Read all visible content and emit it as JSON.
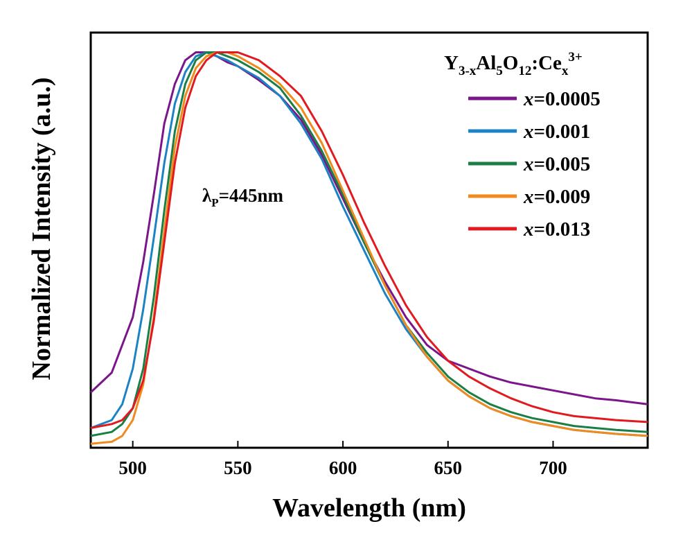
{
  "chart_data": {
    "type": "line",
    "xlabel": "Wavelength (nm)",
    "ylabel": "Normalized Intensity (a.u.)",
    "xlim": [
      480,
      745
    ],
    "ylim": [
      0,
      1.05
    ],
    "x_ticks": [
      "500",
      "550",
      "600",
      "650",
      "700"
    ],
    "y_ticks_labeled": false,
    "grid": false,
    "legend_position": "top-right",
    "legend": {
      "title_parts": {
        "y": "Y",
        "y_sub": "3-x",
        "al": "Al",
        "al_sub": "5",
        "o": "O",
        "o_sub": "12",
        "ce": ":Ce",
        "ce_sub": "x",
        "ce_sup": "3+"
      }
    },
    "annotation": {
      "text_lambda": "λ",
      "text_sub": "P",
      "text_rest": "=445nm"
    },
    "series": [
      {
        "name": "x=0.0005",
        "name_var": "x",
        "name_val": "=0.0005",
        "color": "#7b168a",
        "x": [
          480,
          490,
          500,
          505,
          510,
          515,
          520,
          525,
          530,
          535,
          540,
          545,
          550,
          560,
          570,
          580,
          590,
          600,
          610,
          620,
          630,
          640,
          650,
          660,
          670,
          680,
          690,
          700,
          710,
          720,
          730,
          745
        ],
        "y": [
          0.14,
          0.19,
          0.33,
          0.47,
          0.64,
          0.82,
          0.92,
          0.98,
          1.0,
          1.0,
          0.99,
          0.975,
          0.965,
          0.93,
          0.89,
          0.83,
          0.74,
          0.63,
          0.52,
          0.42,
          0.33,
          0.26,
          0.22,
          0.2,
          0.18,
          0.165,
          0.155,
          0.145,
          0.135,
          0.125,
          0.12,
          0.11
        ]
      },
      {
        "name": "x=0.001",
        "name_var": "x",
        "name_val": "=0.001",
        "color": "#1b82c4",
        "x": [
          480,
          490,
          495,
          500,
          505,
          510,
          515,
          520,
          525,
          530,
          535,
          540,
          545,
          550,
          560,
          570,
          580,
          590,
          600,
          610,
          620,
          630,
          640,
          650,
          660,
          670,
          680,
          690,
          700,
          710,
          720,
          730,
          745
        ],
        "y": [
          0.05,
          0.07,
          0.11,
          0.2,
          0.35,
          0.53,
          0.72,
          0.87,
          0.95,
          0.99,
          1.0,
          0.99,
          0.98,
          0.965,
          0.935,
          0.89,
          0.82,
          0.73,
          0.61,
          0.5,
          0.39,
          0.3,
          0.23,
          0.17,
          0.13,
          0.1,
          0.08,
          0.065,
          0.055,
          0.045,
          0.04,
          0.035,
          0.03
        ]
      },
      {
        "name": "x=0.005",
        "name_var": "x",
        "name_val": "=0.005",
        "color": "#1a7f45",
        "x": [
          480,
          490,
          495,
          500,
          505,
          510,
          515,
          520,
          525,
          530,
          535,
          540,
          545,
          550,
          560,
          570,
          580,
          590,
          600,
          610,
          620,
          630,
          640,
          650,
          660,
          670,
          680,
          690,
          700,
          710,
          720,
          730,
          745
        ],
        "y": [
          0.03,
          0.04,
          0.06,
          0.1,
          0.2,
          0.38,
          0.6,
          0.8,
          0.92,
          0.98,
          1.0,
          1.0,
          0.99,
          0.98,
          0.95,
          0.91,
          0.84,
          0.75,
          0.64,
          0.52,
          0.41,
          0.31,
          0.24,
          0.18,
          0.14,
          0.11,
          0.09,
          0.075,
          0.065,
          0.055,
          0.05,
          0.045,
          0.04
        ]
      },
      {
        "name": "x=0.009",
        "name_var": "x",
        "name_val": "=0.009",
        "color": "#f08a1c",
        "x": [
          480,
          490,
          495,
          500,
          505,
          510,
          515,
          520,
          525,
          530,
          535,
          540,
          545,
          550,
          560,
          570,
          580,
          590,
          600,
          610,
          620,
          630,
          640,
          650,
          660,
          670,
          680,
          690,
          700,
          710,
          720,
          730,
          745
        ],
        "y": [
          0.01,
          0.015,
          0.03,
          0.07,
          0.16,
          0.33,
          0.55,
          0.76,
          0.89,
          0.96,
          0.99,
          1.0,
          1.0,
          0.99,
          0.96,
          0.92,
          0.86,
          0.77,
          0.65,
          0.53,
          0.41,
          0.31,
          0.23,
          0.17,
          0.13,
          0.1,
          0.08,
          0.065,
          0.055,
          0.045,
          0.04,
          0.035,
          0.03
        ]
      },
      {
        "name": "x=0.013",
        "name_var": "x",
        "name_val": "=0.013",
        "color": "#e01a1f",
        "x": [
          480,
          490,
          495,
          500,
          505,
          510,
          515,
          520,
          525,
          530,
          535,
          540,
          545,
          550,
          560,
          570,
          580,
          590,
          600,
          610,
          620,
          630,
          640,
          650,
          660,
          670,
          680,
          690,
          700,
          710,
          720,
          730,
          745
        ],
        "y": [
          0.05,
          0.06,
          0.07,
          0.1,
          0.17,
          0.32,
          0.52,
          0.72,
          0.86,
          0.94,
          0.98,
          1.0,
          1.0,
          1.0,
          0.98,
          0.94,
          0.89,
          0.8,
          0.69,
          0.57,
          0.46,
          0.36,
          0.28,
          0.22,
          0.18,
          0.15,
          0.125,
          0.105,
          0.09,
          0.08,
          0.075,
          0.07,
          0.065
        ]
      }
    ]
  }
}
